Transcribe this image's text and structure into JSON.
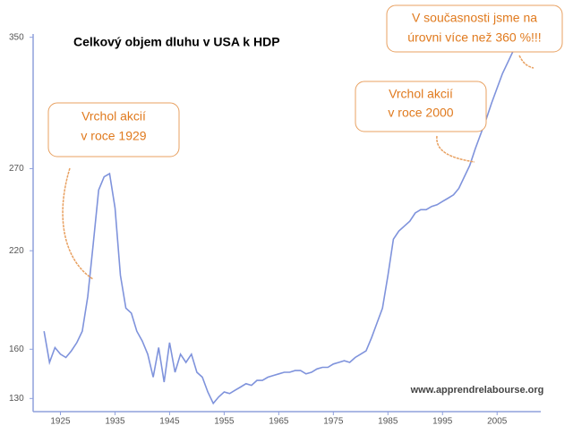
{
  "chart_data": {
    "type": "line",
    "title": "Celkový objem dluhu v USA k HDP",
    "x": [
      1922,
      1923,
      1924,
      1925,
      1926,
      1927,
      1928,
      1929,
      1930,
      1931,
      1932,
      1933,
      1934,
      1935,
      1936,
      1937,
      1938,
      1939,
      1940,
      1941,
      1942,
      1943,
      1944,
      1945,
      1946,
      1947,
      1948,
      1949,
      1950,
      1951,
      1952,
      1953,
      1954,
      1955,
      1956,
      1957,
      1958,
      1959,
      1960,
      1961,
      1962,
      1963,
      1964,
      1965,
      1966,
      1967,
      1968,
      1969,
      1970,
      1971,
      1972,
      1973,
      1974,
      1975,
      1976,
      1977,
      1978,
      1979,
      1980,
      1981,
      1982,
      1983,
      1984,
      1985,
      1986,
      1987,
      1988,
      1989,
      1990,
      1991,
      1992,
      1993,
      1994,
      1995,
      1996,
      1997,
      1998,
      1999,
      2000,
      2001,
      2002,
      2003,
      2004,
      2005,
      2006,
      2007,
      2008,
      2009,
      2010
    ],
    "values": [
      171,
      152,
      161,
      157,
      155,
      159,
      164,
      171,
      192,
      224,
      257,
      265,
      267,
      246,
      205,
      185,
      182,
      171,
      165,
      157,
      143,
      161,
      140,
      164,
      146,
      157,
      152,
      157,
      146,
      143,
      134,
      127,
      131,
      134,
      133,
      135,
      137,
      139,
      138,
      141,
      141,
      143,
      144,
      145,
      146,
      146,
      147,
      147,
      145,
      146,
      148,
      149,
      149,
      151,
      152,
      153,
      152,
      155,
      157,
      159,
      167,
      176,
      185,
      205,
      227,
      232,
      235,
      238,
      243,
      245,
      245,
      247,
      248,
      250,
      252,
      254,
      258,
      265,
      272,
      282,
      291,
      300,
      310,
      319,
      328,
      335,
      342,
      349,
      342
    ],
    "color": "#7f93dc",
    "xlim": [
      1920,
      2013
    ],
    "xticks": [
      1925,
      1935,
      1945,
      1955,
      1965,
      1975,
      1985,
      1995,
      2005
    ],
    "ylim": [
      122,
      352
    ],
    "yticks": [
      130,
      160,
      220,
      270,
      350
    ],
    "annotations": [
      {
        "lines": [
          "Vrchol akcií",
          "v roce 1929"
        ]
      },
      {
        "lines": [
          "Vrchol akcií",
          "v roce 2000"
        ]
      },
      {
        "lines": [
          "V současnosti jsme na",
          "úrovni více než 360 %!!!"
        ]
      }
    ],
    "watermark": "www.apprendrelabourse.org"
  }
}
